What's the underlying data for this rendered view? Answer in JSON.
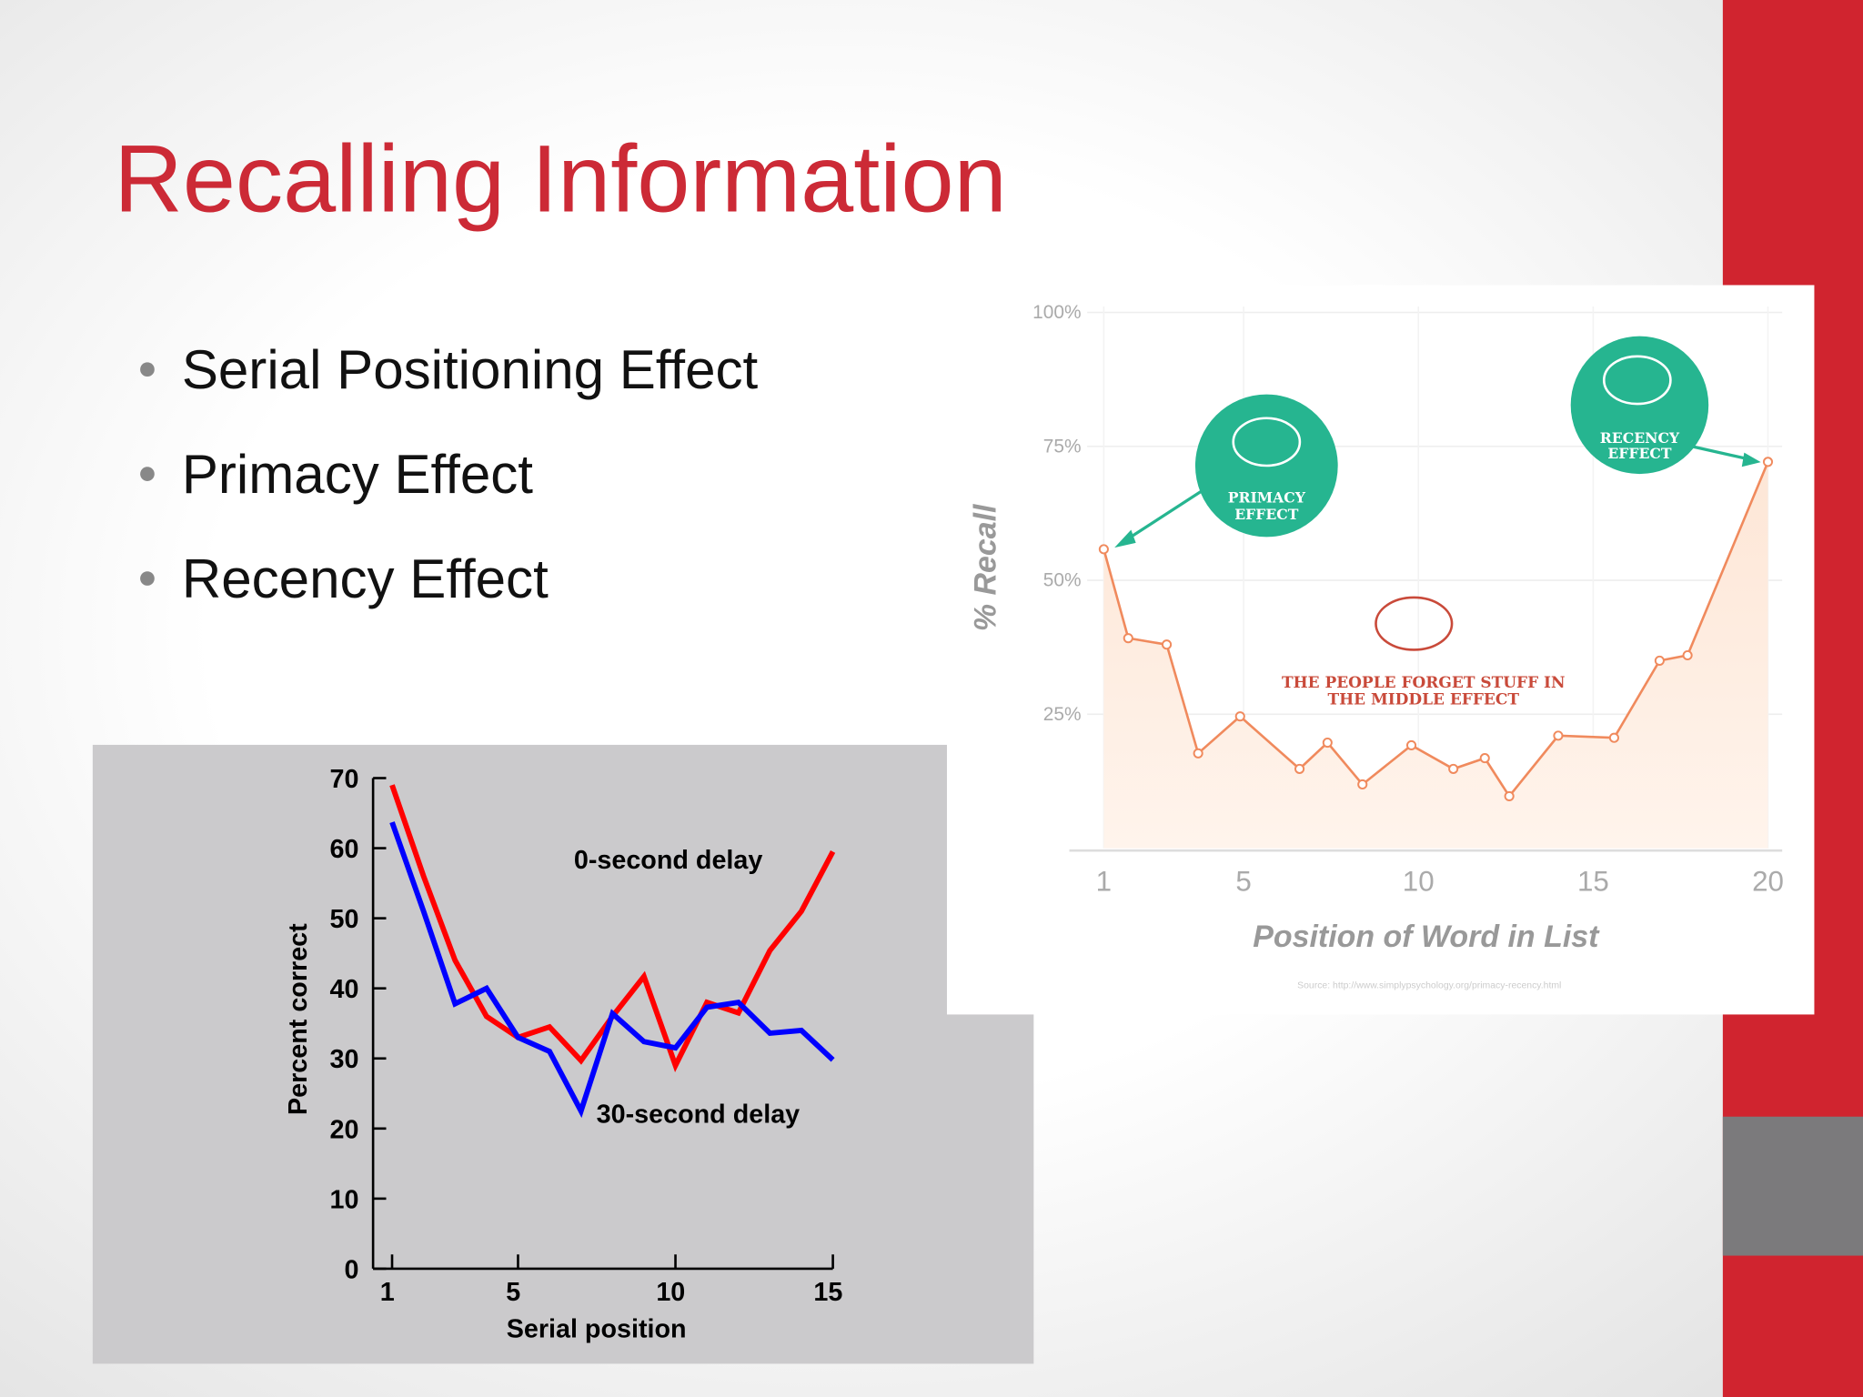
{
  "title": "Recalling Information",
  "bullets": [
    "Serial Positioning Effect",
    "Primacy Effect",
    "Recency Effect"
  ],
  "chart_data": [
    {
      "type": "line",
      "x_label": "Serial position",
      "y_label": "Percent correct",
      "x": [
        1,
        2,
        3,
        4,
        5,
        6,
        7,
        8,
        9,
        10,
        11,
        12,
        13,
        14,
        15
      ],
      "xlim": [
        1,
        15
      ],
      "xticks": [
        1,
        5,
        10,
        15
      ],
      "ylim": [
        0,
        70
      ],
      "yticks": [
        0,
        10,
        20,
        30,
        40,
        50,
        60,
        70
      ],
      "series": [
        {
          "name": "0-second delay",
          "color": "#ff0000",
          "values": [
            69,
            56,
            44,
            36,
            33,
            34.5,
            29.7,
            36,
            41.7,
            29,
            38,
            36.5,
            45.4,
            51,
            59.5
          ]
        },
        {
          "name": "30-second delay",
          "color": "#0000ff",
          "values": [
            63.7,
            51,
            37.8,
            40,
            33,
            31,
            22.5,
            36.4,
            32.4,
            31.5,
            37.3,
            38,
            33.6,
            34,
            29.8
          ]
        }
      ]
    },
    {
      "type": "line",
      "x_label": "Position of Word in List",
      "y_label": "% Recall",
      "x": [
        1.0,
        1.7,
        2.8,
        3.7,
        4.9,
        6.6,
        7.4,
        8.4,
        9.8,
        11.0,
        11.9,
        12.6,
        14.0,
        15.6,
        16.9,
        17.7,
        20.0
      ],
      "values": [
        55.8,
        39.2,
        38,
        17.7,
        24.6,
        14.8,
        19.7,
        11.9,
        19.2,
        14.8,
        16.8,
        9.7,
        21,
        20.6,
        35,
        36,
        72.1
      ],
      "color": "#f08a5d",
      "xlim": [
        1,
        20
      ],
      "xticks": [
        1,
        5,
        10,
        15,
        20
      ],
      "ylim": [
        0,
        100
      ],
      "yticks": [
        {
          "value": 25,
          "label": "25%"
        },
        {
          "value": 50,
          "label": "50%"
        },
        {
          "value": 75,
          "label": "75%"
        },
        {
          "value": 100,
          "label": "100%"
        }
      ],
      "grid": true,
      "annotations": [
        "PRIMACY",
        "EFFECT",
        "RECENCY",
        "EFFECT",
        "THE PEOPLE FORGET STUFF IN",
        "THE MIDDLE EFFECT"
      ],
      "source": "Source: http://www.simplypsychology.org/primacy-recency.html"
    }
  ]
}
